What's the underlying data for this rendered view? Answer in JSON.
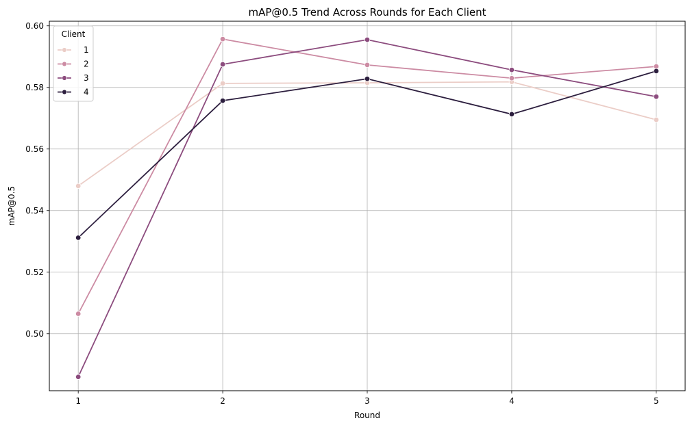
{
  "chart_data": {
    "type": "line",
    "title": "mAP@0.5 Trend Across Rounds for Each Client",
    "xlabel": "Round",
    "ylabel": "mAP@0.5",
    "x": [
      1,
      2,
      3,
      4,
      5
    ],
    "x_ticks": [
      "1",
      "2",
      "3",
      "4",
      "5"
    ],
    "y_ticks": [
      "0.50",
      "0.52",
      "0.54",
      "0.56",
      "0.58",
      "0.60"
    ],
    "ylim": [
      0.4815,
      0.6015
    ],
    "xlim": [
      0.8,
      5.2
    ],
    "grid": true,
    "legend": {
      "title": "Client",
      "placement": "top-left"
    },
    "series": [
      {
        "name": "1",
        "color": "#ebcdc7",
        "values": [
          0.548,
          0.5813,
          0.5815,
          0.5818,
          0.5695
        ]
      },
      {
        "name": "2",
        "color": "#cc8ba3",
        "values": [
          0.5065,
          0.5957,
          0.5873,
          0.583,
          0.5868
        ]
      },
      {
        "name": "3",
        "color": "#8c4c7e",
        "values": [
          0.486,
          0.5875,
          0.5955,
          0.5857,
          0.577
        ]
      },
      {
        "name": "4",
        "color": "#2c1e3e",
        "values": [
          0.5312,
          0.5757,
          0.5828,
          0.5713,
          0.5853
        ]
      }
    ]
  }
}
